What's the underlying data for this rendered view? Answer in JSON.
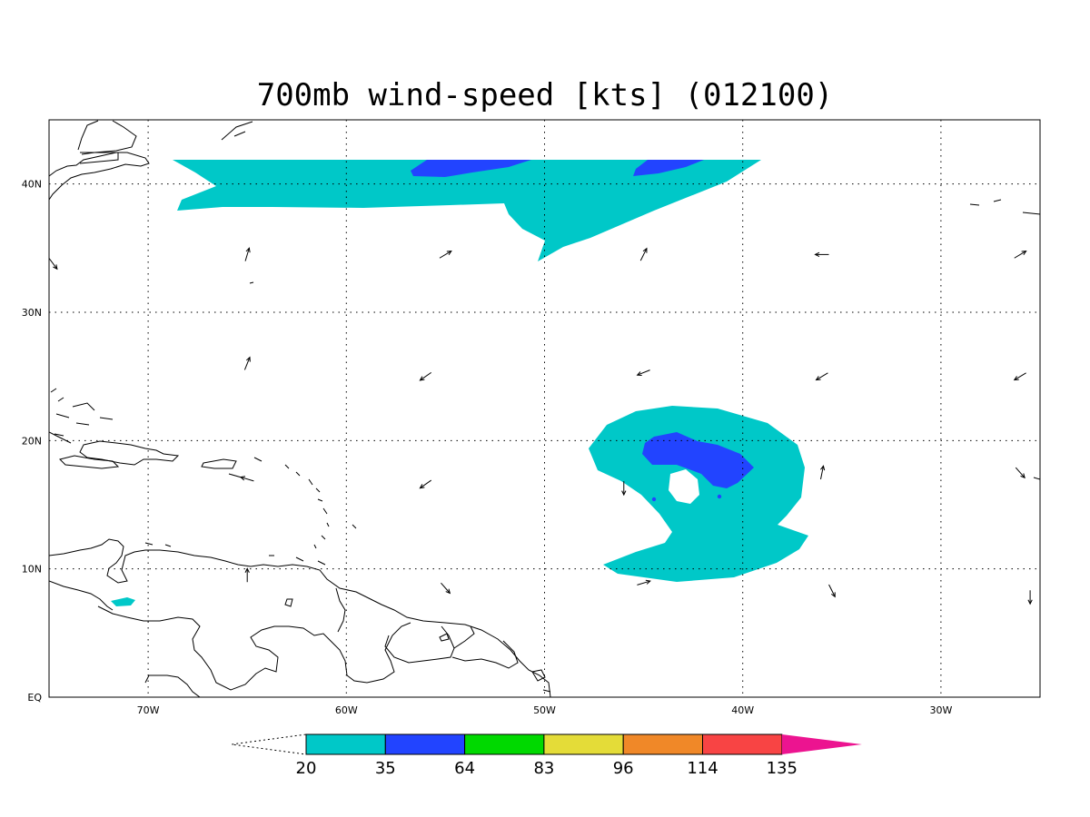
{
  "title": "700mb wind-speed [kts] (012100)",
  "colors": {
    "c20": "#00c8c8",
    "c35": "#2244ff",
    "c64": "#00d900",
    "c83": "#e4dc38",
    "c96": "#f08828",
    "c114": "#f84444",
    "c135": "#ec1490"
  },
  "map": {
    "lon_range": [
      -75,
      -25
    ],
    "lat_range": [
      0,
      45
    ],
    "lon_ticks": [
      {
        "value": -70,
        "label": "70W"
      },
      {
        "value": -60,
        "label": "60W"
      },
      {
        "value": -50,
        "label": "50W"
      },
      {
        "value": -40,
        "label": "40W"
      },
      {
        "value": -30,
        "label": "30W"
      }
    ],
    "lat_ticks": [
      {
        "value": 0,
        "label": "EQ"
      },
      {
        "value": 10,
        "label": "10N"
      },
      {
        "value": 20,
        "label": "20N"
      },
      {
        "value": 30,
        "label": "30N"
      },
      {
        "value": 40,
        "label": "40N"
      }
    ]
  },
  "colorbar": {
    "labels": [
      "20",
      "35",
      "64",
      "83",
      "96",
      "114",
      "135"
    ],
    "swatches": [
      "#00c8c8",
      "#2244ff",
      "#00d900",
      "#e4dc38",
      "#f08828",
      "#f84444"
    ],
    "over_color": "#ec1490"
  },
  "wind_vectors": [
    {
      "lon": -65,
      "lat": 34.5,
      "u": 0.3,
      "v": 1.0
    },
    {
      "lon": -55,
      "lat": 34.5,
      "u": 1.0,
      "v": 0.6
    },
    {
      "lon": -45,
      "lat": 34.5,
      "u": 0.5,
      "v": 1.0
    },
    {
      "lon": -36,
      "lat": 34.5,
      "u": -1.0,
      "v": 0.0
    },
    {
      "lon": -26,
      "lat": 34.5,
      "u": 1.0,
      "v": 0.6
    },
    {
      "lon": -65,
      "lat": 26,
      "u": 0.4,
      "v": 1.0
    },
    {
      "lon": -56,
      "lat": 25,
      "u": -1.0,
      "v": -0.7
    },
    {
      "lon": -45,
      "lat": 25.3,
      "u": -1.0,
      "v": -0.4
    },
    {
      "lon": -36,
      "lat": 25,
      "u": -1.0,
      "v": -0.6
    },
    {
      "lon": -26,
      "lat": 25,
      "u": -1.0,
      "v": -0.6
    },
    {
      "lon": -65,
      "lat": 17,
      "u": -1.0,
      "v": 0.3
    },
    {
      "lon": -56,
      "lat": 16.6,
      "u": -1.0,
      "v": -0.7
    },
    {
      "lon": -46,
      "lat": 16.3,
      "u": 0.0,
      "v": -1.0
    },
    {
      "lon": -36,
      "lat": 17.5,
      "u": 0.2,
      "v": 1.0
    },
    {
      "lon": -26,
      "lat": 17.5,
      "u": 0.7,
      "v": -0.8
    },
    {
      "lon": -65,
      "lat": 9.5,
      "u": 0.0,
      "v": 1.0
    },
    {
      "lon": -55,
      "lat": 8.5,
      "u": 0.7,
      "v": -0.8
    },
    {
      "lon": -45,
      "lat": 8.9,
      "u": 1.0,
      "v": 0.3
    },
    {
      "lon": -35.5,
      "lat": 8.3,
      "u": 0.5,
      "v": -1.0
    },
    {
      "lon": -25.5,
      "lat": 7.8,
      "u": 0.0,
      "v": -1.0
    },
    {
      "lon": -74.8,
      "lat": 33.8,
      "u": 0.6,
      "v": -0.8
    }
  ]
}
